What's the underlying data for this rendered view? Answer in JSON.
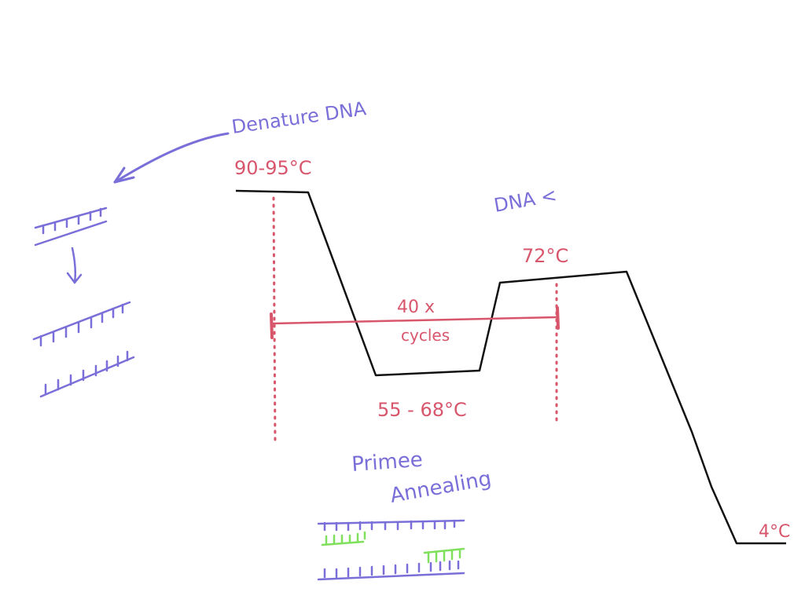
{
  "colors": {
    "curve": "#111111",
    "label_purple": "#7a6fd8",
    "label_red": "#d8566c",
    "primer_green": "#7fe05c"
  },
  "labels": {
    "denature": "Denature DNA",
    "denature_temp": "90-95°C",
    "extension": "DNA <",
    "extension_temp": "72°C",
    "cycles_count": "40 x",
    "cycles_word": "cycles",
    "annealing_temp": "55 - 68°C",
    "annealing_line1": "Primee",
    "annealing_line2": "Annealing",
    "hold_temp": "4°C"
  }
}
